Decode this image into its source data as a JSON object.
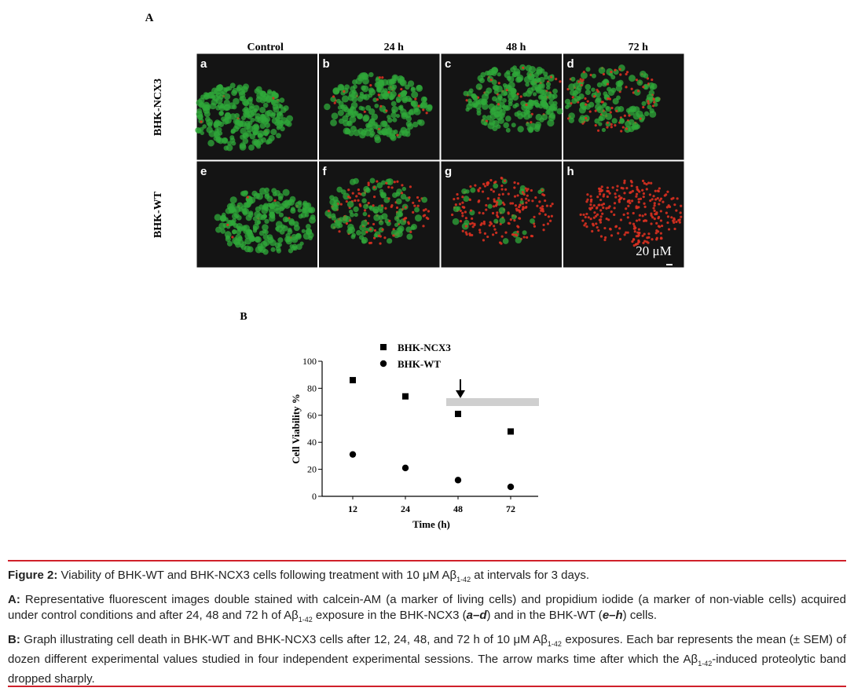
{
  "figure_a": {
    "label": "A",
    "columns": [
      "Control",
      "24 h",
      "48 h",
      "72 h"
    ],
    "rows": [
      "BHK-NCX3",
      "BHK-WT"
    ],
    "panels": [
      "a",
      "b",
      "c",
      "d",
      "e",
      "f",
      "g",
      "h"
    ],
    "scale_bar": "20 μM"
  },
  "chart_data": {
    "type": "scatter",
    "label": "B",
    "y_label": "Cell Viability %",
    "x_label": "Time (h)",
    "categories": [
      "12",
      "24",
      "48",
      "72"
    ],
    "series": [
      {
        "name": "BHK-NCX3",
        "marker": "square",
        "color": "#000000",
        "values": [
          86,
          74,
          61,
          48
        ]
      },
      {
        "name": "BHK-WT",
        "marker": "circle",
        "color": "#000000",
        "values": [
          31,
          21,
          12,
          7
        ]
      }
    ],
    "ylim": [
      0,
      100
    ],
    "yticks": [
      0,
      20,
      40,
      60,
      80,
      100
    ]
  },
  "caption": {
    "paragraphs": [
      [
        {
          "b": "Figure 2:"
        },
        {
          "t": " Viability of BHK-WT and BHK-NCX3 cells following treatment with 10 μM Aβ"
        },
        {
          "sub": "1-42"
        },
        {
          "t": " at intervals for 3 days."
        }
      ],
      [
        {
          "b": "A:"
        },
        {
          "t": " Representative fluorescent images double stained with calcein-AM (a marker of living cells) and propidium iodide (a marker of non-viable cells) acquired under control conditions and after 24, 48 and 72 h of Aβ"
        },
        {
          "sub": "1-42"
        },
        {
          "t": " exposure in the BHK-NCX3 ("
        },
        {
          "bi": "a–d"
        },
        {
          "t": ") and in the BHK-WT ("
        },
        {
          "bi": "e–h"
        },
        {
          "t": ") cells."
        }
      ],
      [
        {
          "b": "B:"
        },
        {
          "t": " Graph illustrating cell death in BHK-WT and BHK-NCX3 cells after 12, 24, 48, and 72 h of 10 μM Aβ"
        },
        {
          "sub": "1-42"
        },
        {
          "t": " exposures. Each bar represents the mean (± SEM) of dozen different experimental values studied in four independent experimental sessions. The arrow marks time after which the Aβ"
        },
        {
          "sub": "1-42"
        },
        {
          "t": "-induced proteolytic band dropped sharply."
        }
      ]
    ]
  }
}
